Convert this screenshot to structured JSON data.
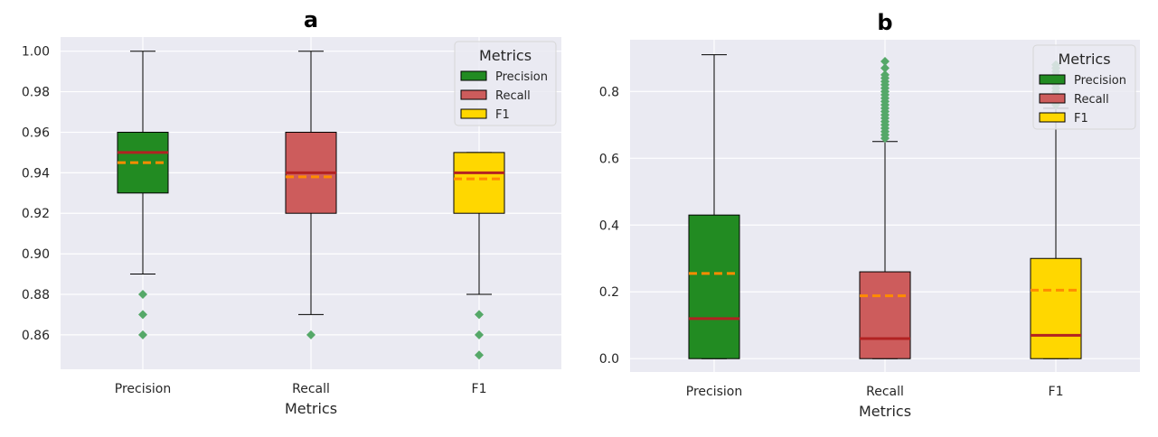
{
  "chart_data": [
    {
      "type": "box",
      "title": "a",
      "xlabel": "Metrics",
      "ylabel": "",
      "ylim": [
        0.843,
        1.007
      ],
      "yticks": [
        0.86,
        0.88,
        0.9,
        0.92,
        0.94,
        0.96,
        0.98,
        1.0
      ],
      "ytick_labels": [
        "0.86",
        "0.88",
        "0.90",
        "0.92",
        "0.94",
        "0.96",
        "0.98",
        "1.00"
      ],
      "grid": true,
      "categories": [
        "Precision",
        "Recall",
        "F1"
      ],
      "series": [
        {
          "name": "Precision",
          "color": "#228B22",
          "whisker_low": 0.89,
          "q1": 0.93,
          "median": 0.95,
          "mean": 0.945,
          "q3": 0.96,
          "whisker_high": 1.0,
          "outliers": [
            0.88,
            0.87,
            0.86
          ]
        },
        {
          "name": "Recall",
          "color": "#CD5C5C",
          "whisker_low": 0.87,
          "q1": 0.92,
          "median": 0.94,
          "mean": 0.938,
          "q3": 0.96,
          "whisker_high": 1.0,
          "outliers": [
            0.86
          ]
        },
        {
          "name": "F1",
          "color": "#FFD700",
          "whisker_low": 0.88,
          "q1": 0.92,
          "median": 0.94,
          "mean": 0.937,
          "q3": 0.95,
          "whisker_high": 0.95,
          "outliers": [
            0.87,
            0.86,
            0.85
          ]
        }
      ],
      "legend": {
        "title": "Metrics",
        "placement": "top-right",
        "entries": [
          "Precision",
          "Recall",
          "F1"
        ]
      }
    },
    {
      "type": "box",
      "title": "b",
      "xlabel": "Metrics",
      "ylabel": "",
      "ylim": [
        -0.04,
        0.955
      ],
      "yticks": [
        0.0,
        0.2,
        0.4,
        0.6,
        0.8
      ],
      "ytick_labels": [
        "0.0",
        "0.2",
        "0.4",
        "0.6",
        "0.8"
      ],
      "grid": true,
      "categories": [
        "Precision",
        "Recall",
        "F1"
      ],
      "series": [
        {
          "name": "Precision",
          "color": "#228B22",
          "whisker_low": 0.0,
          "q1": 0.0,
          "median": 0.12,
          "mean": 0.255,
          "q3": 0.43,
          "whisker_high": 0.91,
          "outliers": []
        },
        {
          "name": "Recall",
          "color": "#CD5C5C",
          "whisker_low": 0.0,
          "q1": 0.0,
          "median": 0.06,
          "mean": 0.188,
          "q3": 0.26,
          "whisker_high": 0.65,
          "outliers": [
            0.66,
            0.67,
            0.68,
            0.69,
            0.7,
            0.71,
            0.72,
            0.73,
            0.74,
            0.75,
            0.76,
            0.77,
            0.78,
            0.79,
            0.8,
            0.81,
            0.82,
            0.83,
            0.84,
            0.85,
            0.87,
            0.89
          ]
        },
        {
          "name": "F1",
          "color": "#FFD700",
          "whisker_low": 0.0,
          "q1": 0.0,
          "median": 0.07,
          "mean": 0.205,
          "q3": 0.3,
          "whisker_high": 0.75,
          "outliers": [
            0.76,
            0.77,
            0.78,
            0.79,
            0.8,
            0.81,
            0.82,
            0.83,
            0.84,
            0.85,
            0.86,
            0.87,
            0.88
          ]
        }
      ],
      "legend": {
        "title": "Metrics",
        "placement": "top-right",
        "entries": [
          "Precision",
          "Recall",
          "F1"
        ]
      }
    }
  ],
  "styles": {
    "median_color": "#B22222",
    "mean_color": "#FF8C00",
    "outlier_color": "#55A868",
    "axes_bg": "#EAEAF2",
    "grid_color": "#FFFFFF"
  }
}
